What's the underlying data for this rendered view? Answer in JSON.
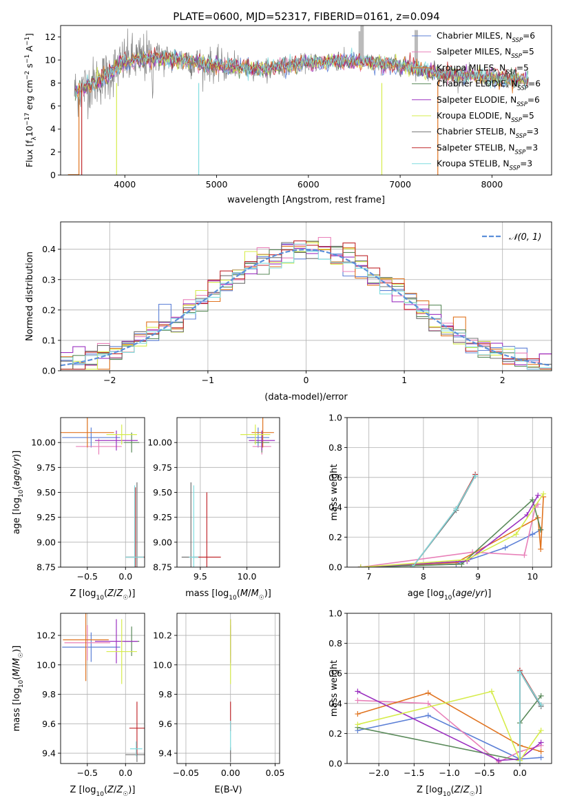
{
  "figure_title": "PLATE=0600, MJD=52317, FIBERID=0161, z=0.094",
  "colors": {
    "chabrier_miles": "#5b7fd6",
    "salpeter_miles": "#e87fb8",
    "kroupa_miles": "#e0731f",
    "chabrier_elodie": "#5a8a5a",
    "salpeter_elodie": "#9b30c0",
    "kroupa_elodie": "#d6ec4a",
    "chabrier_stelib": "#707070",
    "salpeter_stelib": "#c0282c",
    "kroupa_stelib": "#80dde0",
    "normal_fit": "#5b8fd9"
  },
  "legend_entries": [
    "Chabrier MILES, N_SSP=6",
    "Salpeter MILES, N_SSP=5",
    "Kroupa MILES, N_SSP=5",
    "Chabrier ELODIE, N_SSP=6",
    "Salpeter ELODIE, N_SSP=6",
    "Kroupa ELODIE, N_SSP=5",
    "Chabrier STELIB, N_SSP=3",
    "Salpeter STELIB, N_SSP=3",
    "Kroupa STELIB, N_SSP=3"
  ],
  "chart_data": [
    {
      "id": "spectrum",
      "type": "line",
      "xlabel": "wavelength [Angstrom, rest frame]",
      "ylabel": "Flux [f_λ 10^-17 erg cm^-2 s^-1 A^-1]",
      "xlim": [
        3300,
        8650
      ],
      "ylim": [
        0,
        13
      ],
      "xticks": [
        "4000",
        "5000",
        "6000",
        "7000",
        "8000"
      ],
      "yticks": [
        "0",
        "2",
        "4",
        "6",
        "8",
        "10",
        "12"
      ],
      "grid": false,
      "legend_placement": "top-right",
      "model_continuum": {
        "x": [
          3450,
          3600,
          3800,
          4000,
          4300,
          4600,
          5000,
          5500,
          6000,
          6500,
          7000,
          7500,
          8000,
          8400
        ],
        "y": [
          7.2,
          7.8,
          8.6,
          9.9,
          10.2,
          10.0,
          9.5,
          9.2,
          9.8,
          9.9,
          9.5,
          8.7,
          8.5,
          8.2
        ]
      }
    },
    {
      "id": "residuals",
      "type": "step",
      "xlabel": "(data-model)/error",
      "ylabel": "Normed distribution",
      "xlim": [
        -2.5,
        2.5
      ],
      "ylim": [
        0,
        0.49
      ],
      "xticks": [
        "−2",
        "−1",
        "0",
        "1",
        "2"
      ],
      "yticks": [
        "0.0",
        "0.1",
        "0.2",
        "0.3",
        "0.4"
      ],
      "grid": true,
      "legend_placement": "top-right",
      "legend_label": "𝒩(0, 1)",
      "normal_curve": {
        "mean": 0,
        "sigma": 1
      }
    },
    {
      "id": "age_vs_Z",
      "type": "errorbar",
      "xlabel": "Z [log10(Z/Z☉)]",
      "ylabel": "age [log10(age/yr)]",
      "xlim": [
        -0.85,
        0.25
      ],
      "ylim": [
        8.75,
        10.25
      ],
      "xticks": [
        "−0.5",
        "0.0"
      ],
      "yticks": [
        "8.75",
        "9.00",
        "9.25",
        "9.50",
        "9.75",
        "10.00"
      ],
      "grid": true,
      "points": [
        {
          "model": "chabrier_miles",
          "x": -0.45,
          "y": 10.05,
          "xerr": 0.38,
          "yerr": 0.1
        },
        {
          "model": "salpeter_miles",
          "x": -0.35,
          "y": 9.96,
          "xerr": 0.3,
          "yerr": 0.08
        },
        {
          "model": "kroupa_miles",
          "x": -0.5,
          "y": 10.1,
          "xerr": 0.35,
          "yerr": 0.15
        },
        {
          "model": "chabrier_elodie",
          "x": 0.08,
          "y": 10.0,
          "xerr": 0.1,
          "yerr": 0.1
        },
        {
          "model": "salpeter_elodie",
          "x": -0.12,
          "y": 10.02,
          "xerr": 0.28,
          "yerr": 0.1
        },
        {
          "model": "kroupa_elodie",
          "x": -0.05,
          "y": 10.08,
          "xerr": 0.2,
          "yerr": 0.1
        },
        {
          "model": "chabrier_stelib",
          "x": 0.15,
          "y": 8.85,
          "xerr": 0.15,
          "yerr": 0.75
        },
        {
          "model": "salpeter_stelib",
          "x": 0.13,
          "y": 8.85,
          "xerr": 0.12,
          "yerr": 0.7
        },
        {
          "model": "kroupa_stelib",
          "x": 0.12,
          "y": 8.85,
          "xerr": 0.12,
          "yerr": 0.72
        }
      ]
    },
    {
      "id": "age_vs_mass",
      "type": "errorbar",
      "xlabel": "mass [log10(M/M☉)]",
      "xlim": [
        9.25,
        10.35
      ],
      "ylim": [
        8.75,
        10.25
      ],
      "xticks": [
        "9.5",
        "10.0"
      ],
      "yticks": [
        "8.75",
        "9.00",
        "9.25",
        "9.50",
        "9.75",
        "10.00"
      ],
      "grid": true,
      "points": [
        {
          "model": "chabrier_miles",
          "x": 10.12,
          "y": 10.05,
          "xerr": 0.12,
          "yerr": 0.1
        },
        {
          "model": "salpeter_miles",
          "x": 10.16,
          "y": 9.96,
          "xerr": 0.1,
          "yerr": 0.08
        },
        {
          "model": "kroupa_miles",
          "x": 10.17,
          "y": 10.1,
          "xerr": 0.12,
          "yerr": 0.15
        },
        {
          "model": "chabrier_elodie",
          "x": 10.16,
          "y": 10.0,
          "xerr": 0.08,
          "yerr": 0.1
        },
        {
          "model": "salpeter_elodie",
          "x": 10.16,
          "y": 10.02,
          "xerr": 0.14,
          "yerr": 0.1
        },
        {
          "model": "kroupa_elodie",
          "x": 10.09,
          "y": 10.08,
          "xerr": 0.16,
          "yerr": 0.1
        },
        {
          "model": "chabrier_stelib",
          "x": 9.4,
          "y": 8.85,
          "xerr": 0.1,
          "yerr": 0.75
        },
        {
          "model": "salpeter_stelib",
          "x": 9.57,
          "y": 8.85,
          "xerr": 0.15,
          "yerr": 0.65
        },
        {
          "model": "kroupa_stelib",
          "x": 9.43,
          "y": 8.85,
          "xerr": 0.05,
          "yerr": 0.72
        }
      ]
    },
    {
      "id": "weight_vs_age",
      "type": "line",
      "xlabel": "age [log10(age/yr)]",
      "ylabel": "mass weight",
      "xlim": [
        6.6,
        10.35
      ],
      "ylim": [
        0,
        1.0
      ],
      "xticks": [
        "7",
        "8",
        "9",
        "10"
      ],
      "yticks": [
        "0.0",
        "0.2",
        "0.4",
        "0.6",
        "0.8",
        "1.0"
      ],
      "grid": true,
      "series": [
        {
          "model": "chabrier_miles",
          "x": [
            6.85,
            8.6,
            9.5,
            10.0,
            10.15
          ],
          "y": [
            0.0,
            0.02,
            0.13,
            0.22,
            0.25
          ]
        },
        {
          "model": "salpeter_miles",
          "x": [
            6.85,
            8.9,
            9.85,
            10.05,
            10.1
          ],
          "y": [
            0.0,
            0.1,
            0.08,
            0.4,
            0.42
          ]
        },
        {
          "model": "kroupa_miles",
          "x": [
            6.85,
            8.6,
            10.1,
            10.15,
            10.2
          ],
          "y": [
            0.0,
            0.03,
            0.33,
            0.12,
            0.47
          ]
        },
        {
          "model": "chabrier_elodie",
          "x": [
            6.85,
            8.7,
            10.0,
            10.15
          ],
          "y": [
            0.0,
            0.02,
            0.45,
            0.25
          ]
        },
        {
          "model": "salpeter_elodie",
          "x": [
            6.85,
            8.8,
            9.9,
            10.1
          ],
          "y": [
            0.0,
            0.04,
            0.35,
            0.48
          ]
        },
        {
          "model": "kroupa_elodie",
          "x": [
            6.85,
            8.8,
            9.7,
            10.2
          ],
          "y": [
            0.0,
            0.05,
            0.22,
            0.49
          ]
        },
        {
          "model": "chabrier_stelib",
          "x": [
            7.8,
            8.6,
            8.95
          ],
          "y": [
            0.0,
            0.38,
            0.61
          ]
        },
        {
          "model": "salpeter_stelib",
          "x": [
            7.8,
            8.6,
            8.95
          ],
          "y": [
            0.0,
            0.39,
            0.62
          ]
        },
        {
          "model": "kroupa_stelib",
          "x": [
            7.8,
            8.6,
            8.95
          ],
          "y": [
            0.0,
            0.39,
            0.61
          ]
        }
      ]
    },
    {
      "id": "mass_vs_Z",
      "type": "errorbar",
      "xlabel": "Z [log10(Z/Z☉)]",
      "ylabel": "mass [log10(M/M☉)]",
      "xlim": [
        -0.85,
        0.25
      ],
      "ylim": [
        9.33,
        10.35
      ],
      "xticks": [
        "−0.5",
        "0.0"
      ],
      "yticks": [
        "9.4",
        "9.6",
        "9.8",
        "10.0",
        "10.2"
      ],
      "grid": true,
      "points": [
        {
          "model": "chabrier_miles",
          "x": -0.45,
          "y": 10.12,
          "xerr": 0.38,
          "yerr": 0.1
        },
        {
          "model": "salpeter_miles",
          "x": -0.5,
          "y": 10.15,
          "xerr": 0.3,
          "yerr": 0.12
        },
        {
          "model": "kroupa_miles",
          "x": -0.52,
          "y": 10.17,
          "xerr": 0.3,
          "yerr": 0.28
        },
        {
          "model": "chabrier_elodie",
          "x": 0.08,
          "y": 10.16,
          "xerr": 0.1,
          "yerr": 0.1
        },
        {
          "model": "salpeter_elodie",
          "x": -0.12,
          "y": 10.16,
          "xerr": 0.28,
          "yerr": 0.15
        },
        {
          "model": "kroupa_elodie",
          "x": -0.05,
          "y": 10.09,
          "xerr": 0.2,
          "yerr": 0.22
        },
        {
          "model": "chabrier_stelib",
          "x": 0.15,
          "y": 9.39,
          "xerr": 0.15,
          "yerr": 0.05
        },
        {
          "model": "salpeter_stelib",
          "x": 0.15,
          "y": 9.57,
          "xerr": 0.1,
          "yerr": 0.18
        },
        {
          "model": "kroupa_stelib",
          "x": 0.14,
          "y": 9.43,
          "xerr": 0.08,
          "yerr": 0.05
        }
      ]
    },
    {
      "id": "mass_vs_ebv",
      "type": "errorbar",
      "xlabel": "E(B-V)",
      "xlim": [
        -0.06,
        0.055
      ],
      "ylim": [
        9.33,
        10.35
      ],
      "xticks": [
        "−0.05",
        "0.00",
        "0.05"
      ],
      "yticks": [
        "9.4",
        "9.6",
        "9.8",
        "10.0",
        "10.2"
      ],
      "grid": true,
      "points": [
        {
          "model": "chabrier_miles",
          "x": 0.0,
          "y": 10.12,
          "xerr": 0.0,
          "yerr": 0.1
        },
        {
          "model": "salpeter_miles",
          "x": 0.0,
          "y": 10.15,
          "xerr": 0.0,
          "yerr": 0.12
        },
        {
          "model": "kroupa_miles",
          "x": 0.0,
          "y": 10.17,
          "xerr": 0.0,
          "yerr": 0.1
        },
        {
          "model": "chabrier_elodie",
          "x": 0.0,
          "y": 10.16,
          "xerr": 0.0,
          "yerr": 0.1
        },
        {
          "model": "salpeter_elodie",
          "x": 0.0,
          "y": 10.16,
          "xerr": 0.0,
          "yerr": 0.15
        },
        {
          "model": "kroupa_elodie",
          "x": 0.0,
          "y": 10.09,
          "xerr": 0.0,
          "yerr": 0.22
        },
        {
          "model": "chabrier_stelib",
          "x": 0.0,
          "y": 9.39,
          "xerr": 0.0,
          "yerr": 0.05
        },
        {
          "model": "salpeter_stelib",
          "x": 0.0,
          "y": 9.65,
          "xerr": 0.0,
          "yerr": 0.1
        },
        {
          "model": "kroupa_stelib",
          "x": 0.0,
          "y": 9.52,
          "xerr": 0.0,
          "yerr": 0.1
        }
      ]
    },
    {
      "id": "weight_vs_Z",
      "type": "line",
      "xlabel": "Z [log10(Z/Z☉)]",
      "ylabel": "mass weight",
      "xlim": [
        -2.45,
        0.45
      ],
      "ylim": [
        0,
        1.0
      ],
      "xticks": [
        "−2.0",
        "−1.5",
        "−1.0",
        "−0.5",
        "0.0"
      ],
      "yticks": [
        "0.0",
        "0.2",
        "0.4",
        "0.6",
        "0.8",
        "1.0"
      ],
      "grid": true,
      "series": [
        {
          "model": "chabrier_miles",
          "x": [
            -2.3,
            -1.3,
            0.0,
            0.3
          ],
          "y": [
            0.22,
            0.32,
            0.03,
            0.04
          ]
        },
        {
          "model": "salpeter_miles",
          "x": [
            -2.3,
            -1.3,
            -0.3,
            0.0,
            0.3
          ],
          "y": [
            0.42,
            0.4,
            0.01,
            0.08,
            0.12
          ]
        },
        {
          "model": "kroupa_miles",
          "x": [
            -2.3,
            -1.3,
            0.0,
            0.3
          ],
          "y": [
            0.33,
            0.47,
            0.12,
            0.08
          ]
        },
        {
          "model": "chabrier_elodie",
          "x": [
            -2.3,
            0.0,
            0.0,
            0.3
          ],
          "y": [
            0.24,
            0.02,
            0.27,
            0.45
          ]
        },
        {
          "model": "salpeter_elodie",
          "x": [
            -2.3,
            -0.3,
            0.0,
            0.3
          ],
          "y": [
            0.48,
            0.02,
            0.03,
            0.14
          ]
        },
        {
          "model": "kroupa_elodie",
          "x": [
            -2.3,
            -0.4,
            0.0,
            0.3
          ],
          "y": [
            0.26,
            0.48,
            0.02,
            0.22
          ]
        },
        {
          "model": "chabrier_stelib",
          "x": [
            0.0,
            0.0,
            0.3
          ],
          "y": [
            0.0,
            0.61,
            0.38
          ]
        },
        {
          "model": "salpeter_stelib",
          "x": [
            0.0,
            0.0,
            0.3
          ],
          "y": [
            0.0,
            0.62,
            0.39
          ]
        },
        {
          "model": "kroupa_stelib",
          "x": [
            0.0,
            0.0,
            0.3
          ],
          "y": [
            0.0,
            0.61,
            0.39
          ]
        }
      ]
    }
  ]
}
